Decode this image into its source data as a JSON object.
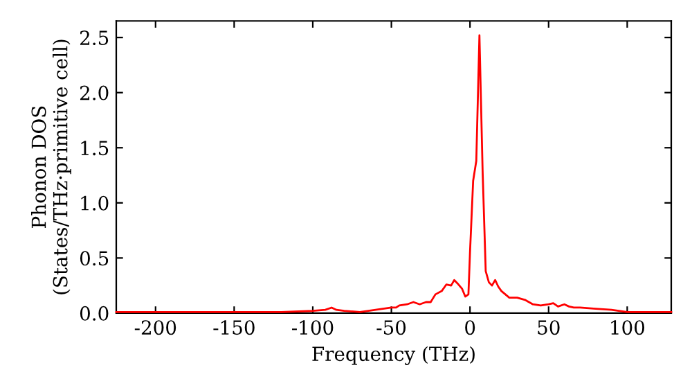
{
  "chart_data": {
    "type": "line",
    "xlabel": "Frequency (THz)",
    "ylabel": "Phonon DOS\n(States/THz·primitive cell)",
    "x": [
      -225,
      -200,
      -150,
      -120,
      -100,
      -92,
      -88,
      -85,
      -80,
      -70,
      -60,
      -50,
      -47,
      -45,
      -40,
      -36,
      -32,
      -28,
      -25,
      -22,
      -18,
      -15,
      -12,
      -10,
      -8,
      -5,
      -3,
      -1,
      0,
      2,
      4,
      6,
      8,
      10,
      12,
      14,
      16,
      18,
      20,
      25,
      30,
      35,
      40,
      45,
      50,
      53,
      56,
      60,
      63,
      66,
      70,
      80,
      90,
      100,
      110,
      128
    ],
    "series": [
      {
        "color": "#ff0000",
        "values": [
          0.01,
          0.01,
          0.01,
          0.01,
          0.02,
          0.03,
          0.05,
          0.03,
          0.02,
          0.01,
          0.03,
          0.05,
          0.05,
          0.07,
          0.08,
          0.1,
          0.08,
          0.1,
          0.1,
          0.17,
          0.2,
          0.26,
          0.25,
          0.3,
          0.27,
          0.22,
          0.15,
          0.17,
          0.55,
          1.2,
          1.38,
          2.52,
          1.3,
          0.38,
          0.28,
          0.25,
          0.3,
          0.24,
          0.2,
          0.14,
          0.14,
          0.12,
          0.08,
          0.07,
          0.08,
          0.09,
          0.06,
          0.08,
          0.06,
          0.05,
          0.05,
          0.04,
          0.03,
          0.01,
          0.01,
          0.01
        ]
      }
    ],
    "xlim": [
      -225,
      128
    ],
    "ylim": [
      0,
      2.65
    ],
    "xticks": [
      -200,
      -150,
      -100,
      -50,
      0,
      50,
      100
    ],
    "yticks": [
      {
        "value": 0,
        "label": "0.0"
      },
      0.5,
      {
        "value": 1,
        "label": "1.0"
      },
      1.5,
      {
        "value": 2,
        "label": "2.0"
      },
      2.5
    ],
    "grid": false,
    "legend": false,
    "line_style": "solid",
    "marker": "none"
  }
}
